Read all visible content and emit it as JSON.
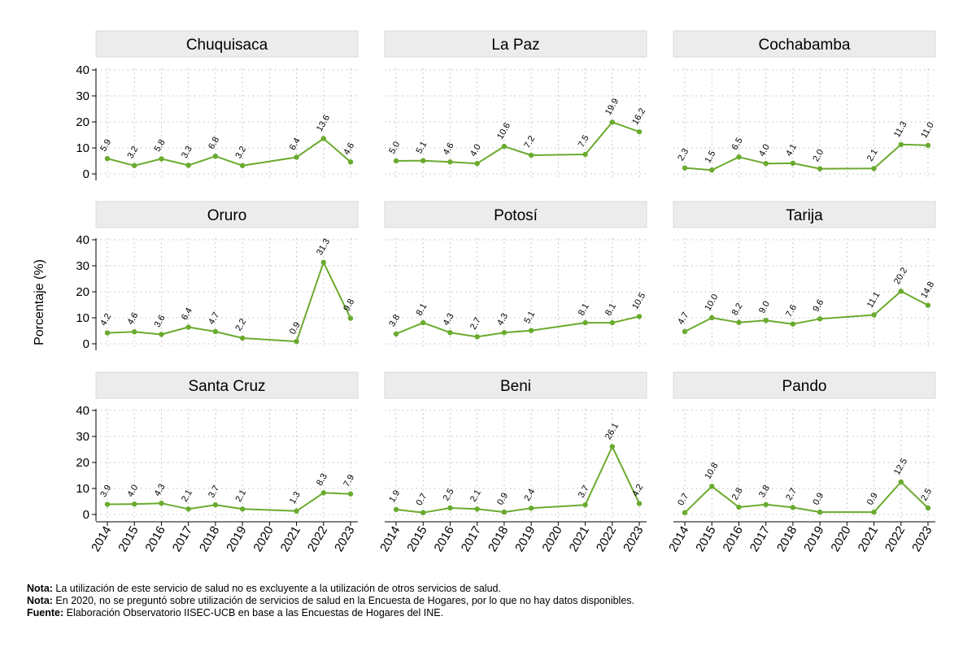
{
  "chart_data": {
    "type": "line",
    "ylabel": "Porcentaje (%)",
    "ylim": [
      0,
      40
    ],
    "yticks": [
      0,
      10,
      20,
      30,
      40
    ],
    "x": [
      "2014",
      "2015",
      "2016",
      "2017",
      "2018",
      "2019",
      "2020",
      "2021",
      "2022",
      "2023"
    ],
    "grid": true,
    "line_color": "#6aab2e",
    "panels": [
      {
        "name": "Chuquisaca",
        "values": [
          5.9,
          3.2,
          5.8,
          3.3,
          6.8,
          3.2,
          null,
          6.4,
          13.6,
          4.6
        ],
        "labels": [
          "5.9",
          "3.2",
          "5.8",
          "3.3",
          "6.8",
          "3.2",
          null,
          "6.4",
          "13.6",
          "4.6"
        ]
      },
      {
        "name": "La Paz",
        "values": [
          5.0,
          5.1,
          4.6,
          4.0,
          10.6,
          7.2,
          null,
          7.5,
          19.9,
          16.2
        ],
        "labels": [
          "5.0",
          "5.1",
          "4.6",
          "4.0",
          "10.6",
          "7.2",
          null,
          "7.5",
          "19.9",
          "16.2"
        ]
      },
      {
        "name": "Cochabamba",
        "values": [
          2.3,
          1.5,
          6.5,
          4.0,
          4.1,
          2.0,
          null,
          2.1,
          11.3,
          11.0
        ],
        "labels": [
          "2.3",
          "1.5",
          "6.5",
          "4.0",
          "4.1",
          "2.0",
          null,
          "2.1",
          "11.3",
          "11.0"
        ]
      },
      {
        "name": "Oruro",
        "values": [
          4.2,
          4.6,
          3.6,
          6.4,
          4.7,
          2.2,
          null,
          0.9,
          31.3,
          9.8
        ],
        "labels": [
          "4.2",
          "4.6",
          "3.6",
          "6.4",
          "4.7",
          "2.2",
          null,
          "0.9",
          "31.3",
          "9.8"
        ]
      },
      {
        "name": "Potosí",
        "values": [
          3.8,
          8.1,
          4.3,
          2.7,
          4.3,
          5.1,
          null,
          8.1,
          8.1,
          10.5
        ],
        "labels": [
          "3.8",
          "8.1",
          "4.3",
          "2.7",
          "4.3",
          "5.1",
          null,
          "8.1",
          "8.1",
          "10.5"
        ]
      },
      {
        "name": "Tarija",
        "values": [
          4.7,
          10.0,
          8.2,
          9.0,
          7.6,
          9.6,
          null,
          11.1,
          20.2,
          14.8
        ],
        "labels": [
          "4.7",
          "10.0",
          "8.2",
          "9.0",
          "7.6",
          "9.6",
          null,
          "11.1",
          "20.2",
          "14.8"
        ]
      },
      {
        "name": "Santa Cruz",
        "values": [
          3.9,
          4.0,
          4.3,
          2.1,
          3.7,
          2.1,
          null,
          1.3,
          8.3,
          7.9
        ],
        "labels": [
          "3.9",
          "4.0",
          "4.3",
          "2.1",
          "3.7",
          "2.1",
          null,
          "1.3",
          "8.3",
          "7.9"
        ]
      },
      {
        "name": "Beni",
        "values": [
          1.9,
          0.7,
          2.5,
          2.1,
          0.9,
          2.4,
          null,
          3.7,
          26.1,
          4.2
        ],
        "labels": [
          "1.9",
          "0.7",
          "2.5",
          "2.1",
          "0.9",
          "2.4",
          null,
          "3.7",
          "26.1",
          "4.2"
        ]
      },
      {
        "name": "Pando",
        "values": [
          0.7,
          10.8,
          2.8,
          3.8,
          2.7,
          0.9,
          null,
          0.9,
          12.5,
          2.5
        ],
        "labels": [
          "0.7",
          "10.8",
          "2.8",
          "3.8",
          "2.7",
          "0.9",
          null,
          "0.9",
          "12.5",
          "2.5"
        ]
      }
    ]
  },
  "notes": [
    {
      "key": "Nota:",
      "text": " La utilización de este servicio de salud no es excluyente a la utilización de otros servicios de salud."
    },
    {
      "key": "Nota:",
      "text": " En 2020, no se preguntó sobre utilización de servicios de salud en la Encuesta de Hogares, por lo que no hay datos disponibles."
    },
    {
      "key": "Fuente:",
      "text": " Elaboración Observatorio IISEC-UCB en base a las Encuestas de Hogares del INE."
    }
  ]
}
